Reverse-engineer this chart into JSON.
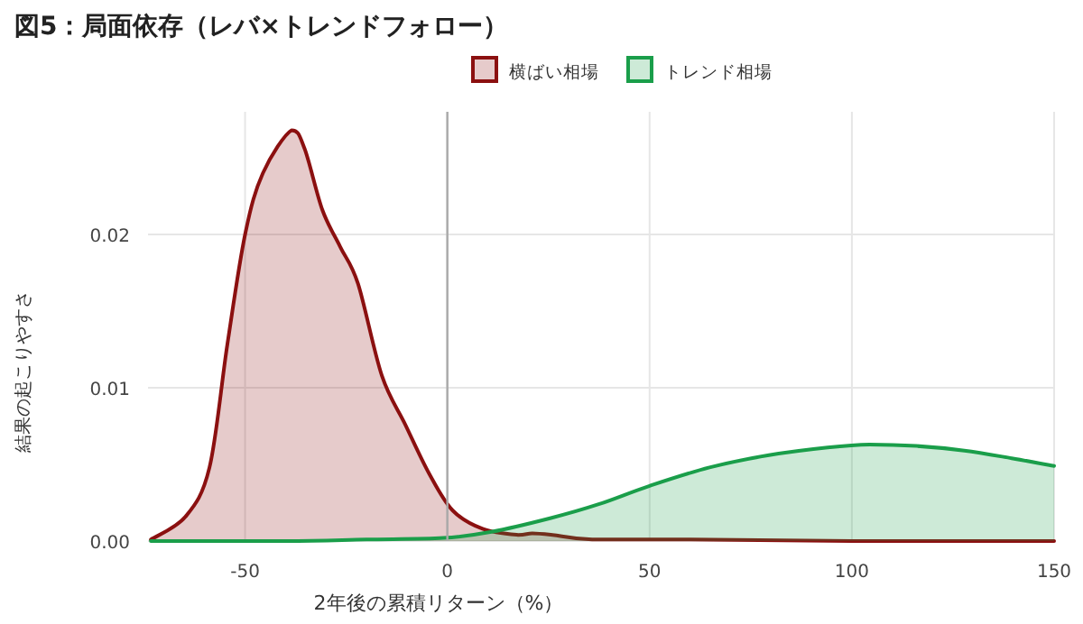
{
  "chart_data": {
    "type": "area",
    "title": "図5：局面依存（レバ×トレンドフォロー）",
    "xlabel": "2年後の累積リターン（%）",
    "ylabel": "結果の起こりやすさ",
    "xlim": [
      -74,
      150
    ],
    "xticks": [
      -50,
      0,
      50,
      100,
      150
    ],
    "ylim": [
      0,
      0.028
    ],
    "yticks": [
      {
        "value": 0,
        "label": "0.00"
      },
      {
        "value": 0.01,
        "label": "0.01"
      },
      {
        "value": 0.02,
        "label": "0.02"
      }
    ],
    "grid": true,
    "legend": "top",
    "ref_lines": [
      {
        "axis": "x",
        "value": 0,
        "color": "#aaaaaa"
      }
    ],
    "series": [
      {
        "name": "横ばい相場",
        "color": "#8b1010",
        "x": [
          -73.3,
          -64.7,
          -58.8,
          -54.4,
          -50,
          -45.6,
          -38.5,
          -35.3,
          -30.9,
          -26.5,
          -22.1,
          -16.2,
          -10.4,
          -4.5,
          1.3,
          8.7,
          17.5,
          21,
          26,
          35.8,
          60,
          100,
          150
        ],
        "values": [
          0.0001,
          0.0016,
          0.0048,
          0.0128,
          0.02,
          0.024,
          0.0268,
          0.0256,
          0.0216,
          0.0192,
          0.0168,
          0.0108,
          0.0076,
          0.0044,
          0.002,
          0.0008,
          0.0004,
          0.0005,
          0.0004,
          0.0001,
          0.0001,
          0,
          0
        ]
      },
      {
        "name": "トレンド相場",
        "color": "#1a9e4a",
        "x": [
          -73.3,
          -40,
          -20,
          -1,
          10.9,
          25.6,
          37.4,
          50,
          64.8,
          79.5,
          94,
          104.4,
          116,
          127.8,
          139.5,
          150
        ],
        "values": [
          0,
          0,
          0.0001,
          0.0002,
          0.0006,
          0.0015,
          0.0024,
          0.0036,
          0.0048,
          0.0056,
          0.0061,
          0.0063,
          0.0062,
          0.0059,
          0.0054,
          0.0049
        ]
      }
    ]
  }
}
